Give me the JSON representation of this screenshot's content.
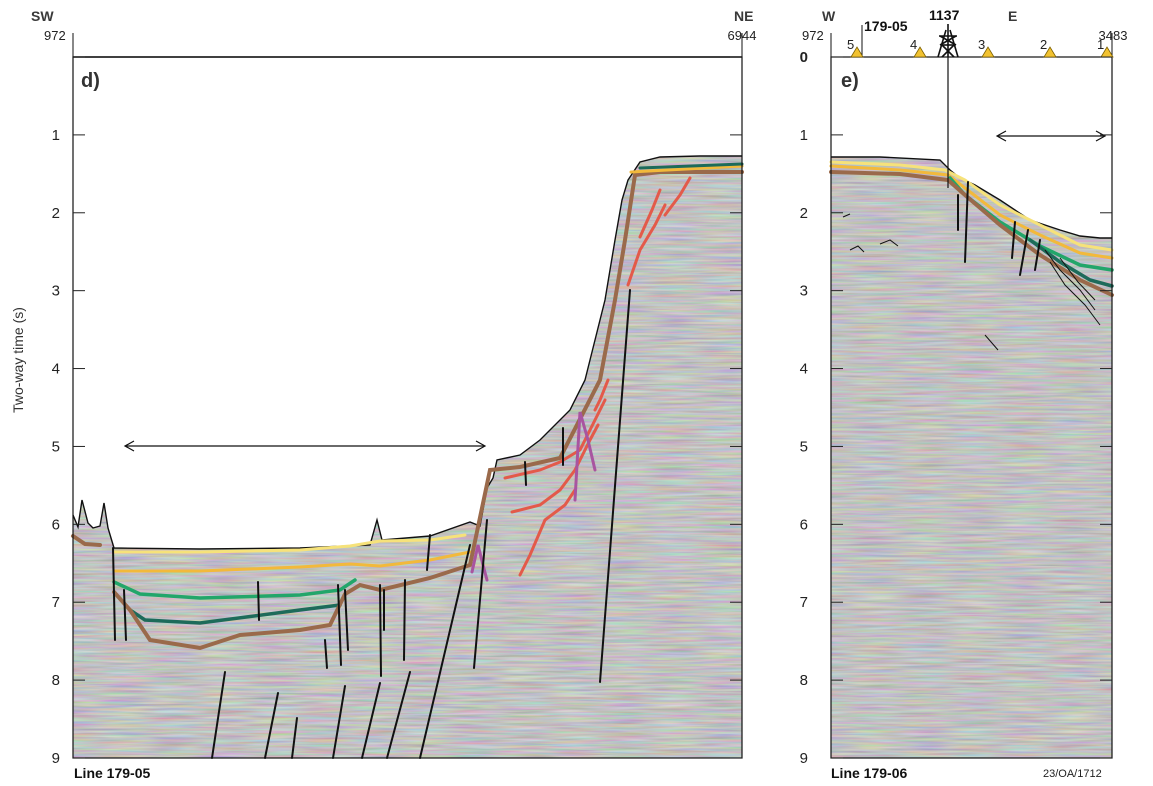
{
  "figure": {
    "y_axis_label": "Two-way time (s)",
    "y_ticks": [
      "0",
      "1",
      "2",
      "3",
      "4",
      "5",
      "6",
      "7",
      "8",
      "9"
    ],
    "y_range": [
      0,
      9
    ],
    "colors": {
      "yellow_light": "#f6e27a",
      "yellow": "#f2b93b",
      "green_light": "#22a66a",
      "green_dark": "#1d6b5a",
      "brown": "#9a6a4b",
      "red": "#e35a4a",
      "purple": "#a855a0",
      "fault": "#111111",
      "seismic_bg": "#9a9a9a"
    }
  },
  "panel_d": {
    "label": "d)",
    "left_direction": "SW",
    "right_direction": "NE",
    "left_cdp": "972",
    "right_cdp": "6944",
    "line_name": "Line 179-05"
  },
  "panel_e": {
    "label": "e)",
    "left_direction": "W",
    "right_direction": "E",
    "left_cdp": "972",
    "right_cdp": "3483",
    "line_name": "Line 179-06",
    "crossing_line": "179-05",
    "well_name": "1137",
    "shotpoints": [
      "5",
      "4",
      "3",
      "2",
      "1"
    ],
    "reference": "23/OA/1712"
  }
}
